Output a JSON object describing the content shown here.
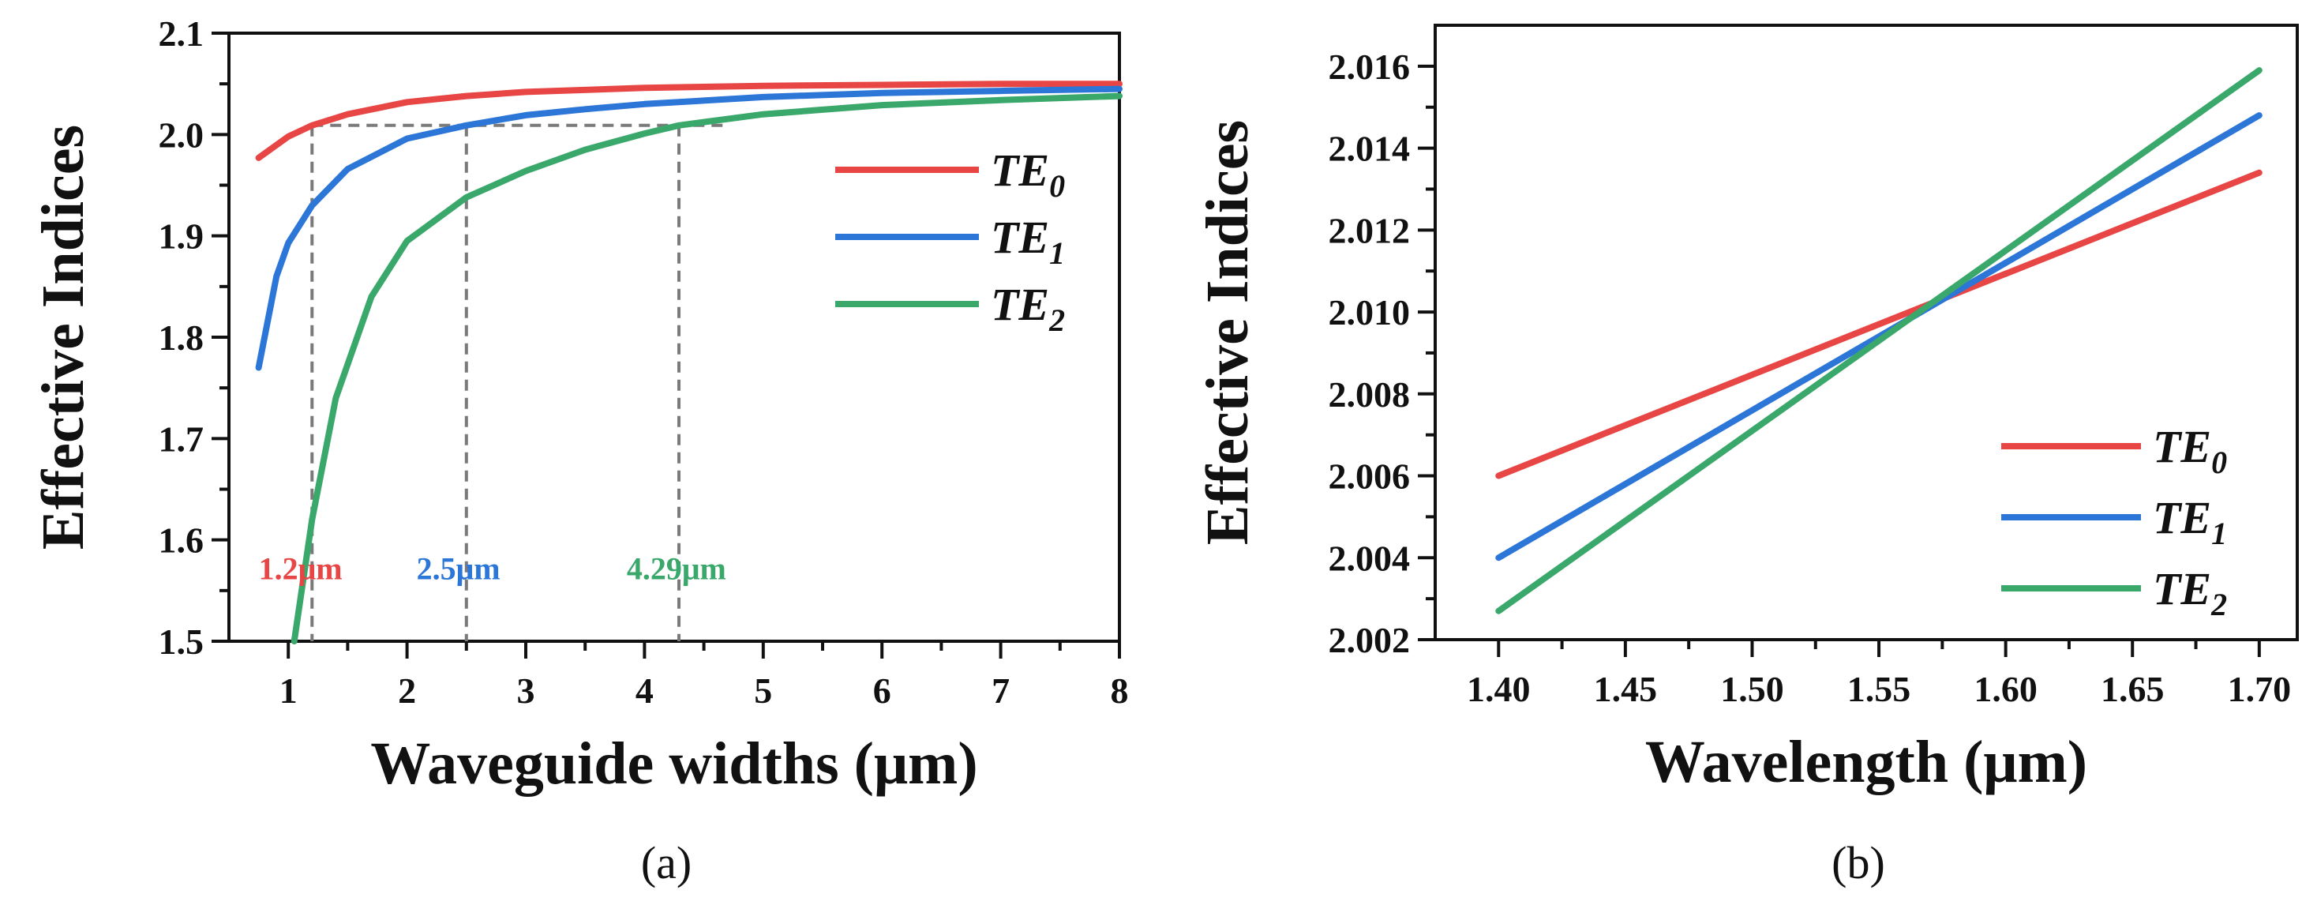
{
  "colors": {
    "te0": "#e84545",
    "te1": "#2c76d8",
    "te2": "#3aa76b",
    "guide": "#7a7a7a"
  },
  "chart_data": [
    {
      "type": "line",
      "caption": "(a)",
      "xlabel": "Waveguide widths (μm)",
      "ylabel": "Effective Indices",
      "xlim": [
        0.5,
        8
      ],
      "ylim": [
        1.5,
        2.1
      ],
      "xticks": [
        "1",
        "2",
        "3",
        "4",
        "5",
        "6",
        "7",
        "8"
      ],
      "yticks": [
        "1.5",
        "1.6",
        "1.7",
        "1.8",
        "1.9",
        "2.0",
        "2.1"
      ],
      "legend_position": "right",
      "series": [
        {
          "name": "TE",
          "sub": "0",
          "color": "#e84545",
          "x": [
            0.75,
            1.0,
            1.2,
            1.5,
            2.0,
            2.5,
            3.0,
            4.0,
            5.0,
            6.0,
            7.0,
            8.0
          ],
          "y": [
            1.977,
            1.998,
            2.009,
            2.02,
            2.032,
            2.038,
            2.042,
            2.046,
            2.048,
            2.049,
            2.05,
            2.05
          ]
        },
        {
          "name": "TE",
          "sub": "1",
          "color": "#2c76d8",
          "x": [
            0.75,
            0.9,
            1.0,
            1.2,
            1.5,
            2.0,
            2.5,
            3.0,
            3.5,
            4.0,
            5.0,
            6.0,
            7.0,
            8.0
          ],
          "y": [
            1.77,
            1.86,
            1.893,
            1.93,
            1.966,
            1.996,
            2.009,
            2.019,
            2.025,
            2.03,
            2.037,
            2.041,
            2.043,
            2.045
          ]
        },
        {
          "name": "TE",
          "sub": "2",
          "color": "#3aa76b",
          "x": [
            1.05,
            1.2,
            1.4,
            1.7,
            2.0,
            2.5,
            3.0,
            3.5,
            4.0,
            4.29,
            5.0,
            6.0,
            7.0,
            8.0
          ],
          "y": [
            1.5,
            1.62,
            1.74,
            1.84,
            1.895,
            1.938,
            1.964,
            1.985,
            2.001,
            2.009,
            2.02,
            2.029,
            2.034,
            2.038
          ]
        }
      ],
      "guides": [
        {
          "x": 1.2,
          "y": 2.009
        },
        {
          "x": 2.5,
          "y": 2.009
        },
        {
          "x": 4.29,
          "y": 2.009
        }
      ],
      "annotations": [
        {
          "text": "1.2μm",
          "x": 0.75,
          "y": 1.572,
          "color": "#e84545"
        },
        {
          "text": "2.5μm",
          "x": 2.08,
          "y": 1.572,
          "color": "#2c76d8"
        },
        {
          "text": "4.29μm",
          "x": 3.85,
          "y": 1.572,
          "color": "#3aa76b"
        }
      ]
    },
    {
      "type": "line",
      "caption": "(b)",
      "xlabel": "Wavelength (μm)",
      "ylabel": "Effective Indices",
      "xlim": [
        1.375,
        1.715
      ],
      "ylim": [
        2.002,
        2.017
      ],
      "xticks": [
        "1.40",
        "1.45",
        "1.50",
        "1.55",
        "1.60",
        "1.65",
        "1.70"
      ],
      "yticks": [
        "2.002",
        "2.004",
        "2.006",
        "2.008",
        "2.010",
        "2.012",
        "2.014",
        "2.016"
      ],
      "legend_position": "bottom-right",
      "series": [
        {
          "name": "TE",
          "sub": "0",
          "color": "#e84545",
          "x": [
            1.4,
            1.7
          ],
          "y": [
            2.006,
            2.0134
          ]
        },
        {
          "name": "TE",
          "sub": "1",
          "color": "#2c76d8",
          "x": [
            1.4,
            1.7
          ],
          "y": [
            2.004,
            2.0148
          ]
        },
        {
          "name": "TE",
          "sub": "2",
          "color": "#3aa76b",
          "x": [
            1.4,
            1.7
          ],
          "y": [
            2.0027,
            2.0159
          ]
        }
      ]
    }
  ]
}
